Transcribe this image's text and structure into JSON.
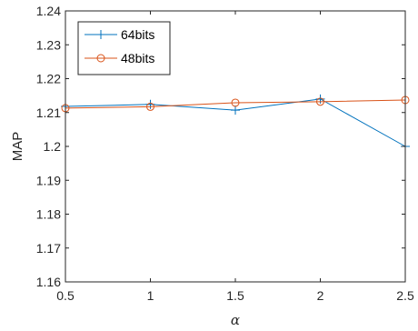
{
  "chart_data": {
    "type": "line",
    "xlabel": "α",
    "ylabel": "MAP",
    "xlim": [
      0.5,
      2.5
    ],
    "ylim": [
      1.16,
      1.24
    ],
    "xticks": [
      0.5,
      1,
      1.5,
      2,
      2.5
    ],
    "xtick_labels": [
      "0.5",
      "1",
      "1.5",
      "2",
      "2.5"
    ],
    "yticks": [
      1.16,
      1.17,
      1.18,
      1.19,
      1.2,
      1.21,
      1.22,
      1.23,
      1.24
    ],
    "ytick_labels": [
      "1.16",
      "1.17",
      "1.18",
      "1.19",
      "1.2",
      "1.21",
      "1.22",
      "1.23",
      "1.24"
    ],
    "grid": false,
    "legend_position": "top-left",
    "x": [
      0.5,
      1,
      1.5,
      2,
      2.5
    ],
    "series": [
      {
        "name": "64bits",
        "values": [
          1.2118,
          1.2124,
          1.2107,
          1.214,
          1.2
        ],
        "color": "#0072BD",
        "marker": "plus"
      },
      {
        "name": "48bits",
        "values": [
          1.2113,
          1.2117,
          1.2129,
          1.2132,
          1.2137
        ],
        "color": "#D95319",
        "marker": "circle"
      }
    ]
  }
}
